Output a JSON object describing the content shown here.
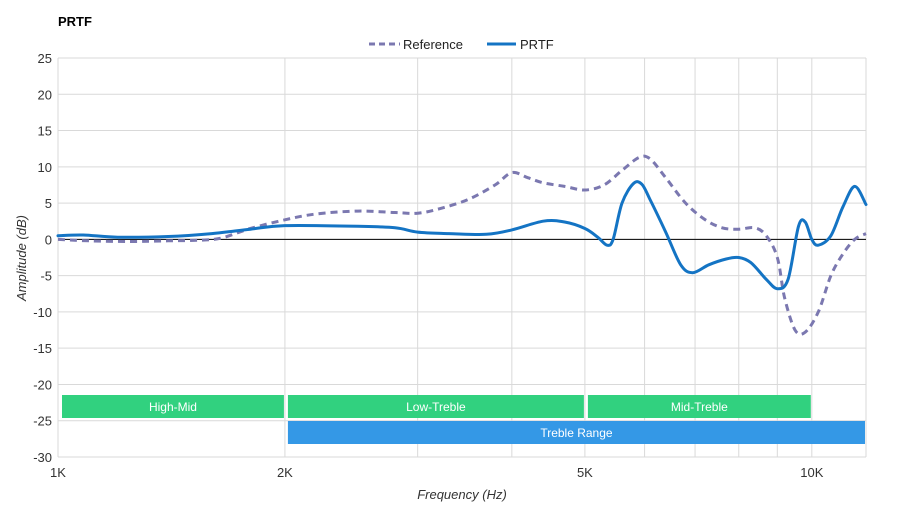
{
  "chart_data": {
    "type": "line",
    "title": "PRTF",
    "xlabel": "Frequency (Hz)",
    "ylabel": "Amplitude (dB)",
    "x_scale": "log",
    "xlim": [
      1000,
      11800
    ],
    "ylim": [
      -30,
      25
    ],
    "y_ticks": [
      25,
      20,
      15,
      10,
      5,
      0,
      -5,
      -10,
      -15,
      -20,
      -25,
      -30
    ],
    "x_ticks": [
      {
        "value": 1000,
        "label": "1K"
      },
      {
        "value": 2000,
        "label": "2K"
      },
      {
        "value": 5000,
        "label": "5K"
      },
      {
        "value": 10000,
        "label": "10K"
      }
    ],
    "x_gridlines": [
      1000,
      2000,
      3000,
      4000,
      5000,
      6000,
      7000,
      8000,
      9000,
      10000,
      11800
    ],
    "legend_position": "top-center",
    "series": [
      {
        "name": "Reference",
        "color": "#7b78b0",
        "style": "dashed",
        "points": [
          [
            1000,
            0
          ],
          [
            1100,
            -0.2
          ],
          [
            1250,
            -0.3
          ],
          [
            1400,
            -0.2
          ],
          [
            1550,
            -0.1
          ],
          [
            1650,
            0.2
          ],
          [
            1800,
            1.5
          ],
          [
            2000,
            2.7
          ],
          [
            2200,
            3.5
          ],
          [
            2500,
            3.9
          ],
          [
            2800,
            3.7
          ],
          [
            3000,
            3.6
          ],
          [
            3200,
            4.2
          ],
          [
            3500,
            5.5
          ],
          [
            3800,
            7.5
          ],
          [
            4000,
            9.2
          ],
          [
            4200,
            8.5
          ],
          [
            4400,
            7.8
          ],
          [
            4700,
            7.3
          ],
          [
            5000,
            6.8
          ],
          [
            5300,
            7.5
          ],
          [
            5600,
            9.5
          ],
          [
            5900,
            11.3
          ],
          [
            6100,
            11.1
          ],
          [
            6400,
            8.5
          ],
          [
            6800,
            5
          ],
          [
            7200,
            2.8
          ],
          [
            7600,
            1.6
          ],
          [
            8000,
            1.4
          ],
          [
            8400,
            1.6
          ],
          [
            8700,
            0.5
          ],
          [
            9000,
            -2.5
          ],
          [
            9200,
            -8
          ],
          [
            9500,
            -12.5
          ],
          [
            9800,
            -12.8
          ],
          [
            10200,
            -10
          ],
          [
            10600,
            -5
          ],
          [
            11000,
            -2
          ],
          [
            11400,
            0
          ],
          [
            11800,
            0.8
          ]
        ]
      },
      {
        "name": "PRTF",
        "color": "#1474c4",
        "style": "solid",
        "points": [
          [
            1000,
            0.5
          ],
          [
            1080,
            0.6
          ],
          [
            1200,
            0.3
          ],
          [
            1400,
            0.4
          ],
          [
            1600,
            0.8
          ],
          [
            1800,
            1.4
          ],
          [
            2000,
            1.9
          ],
          [
            2500,
            1.8
          ],
          [
            2800,
            1.6
          ],
          [
            3000,
            1.0
          ],
          [
            3300,
            0.8
          ],
          [
            3700,
            0.7
          ],
          [
            4000,
            1.3
          ],
          [
            4400,
            2.5
          ],
          [
            4700,
            2.4
          ],
          [
            5000,
            1.5
          ],
          [
            5200,
            0.3
          ],
          [
            5350,
            -0.8
          ],
          [
            5450,
            0
          ],
          [
            5600,
            5
          ],
          [
            5800,
            7.7
          ],
          [
            5950,
            7.6
          ],
          [
            6100,
            5.5
          ],
          [
            6400,
            1
          ],
          [
            6700,
            -3.5
          ],
          [
            6950,
            -4.6
          ],
          [
            7300,
            -3.5
          ],
          [
            7700,
            -2.7
          ],
          [
            8000,
            -2.5
          ],
          [
            8300,
            -3.2
          ],
          [
            8700,
            -5.5
          ],
          [
            9000,
            -6.8
          ],
          [
            9300,
            -5.5
          ],
          [
            9600,
            1.8
          ],
          [
            9800,
            2.4
          ],
          [
            10000,
            0
          ],
          [
            10200,
            -0.8
          ],
          [
            10600,
            0.5
          ],
          [
            11000,
            4.5
          ],
          [
            11400,
            7.3
          ],
          [
            11800,
            4.8
          ]
        ]
      }
    ],
    "bands": [
      {
        "label": "High-Mid",
        "from": 1000,
        "to": 2000,
        "row": 0,
        "color": "#31d17f"
      },
      {
        "label": "Low-Treble",
        "from": 2000,
        "to": 5000,
        "row": 0,
        "color": "#31d17f"
      },
      {
        "label": "Mid-Treble",
        "from": 5000,
        "to": 10000,
        "row": 0,
        "color": "#31d17f"
      },
      {
        "label": "Treble Range",
        "from": 2000,
        "to": 11800,
        "row": 1,
        "color": "#3498e6"
      }
    ]
  }
}
